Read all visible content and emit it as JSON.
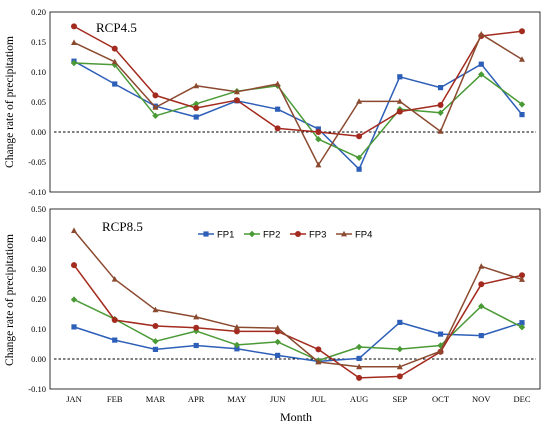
{
  "chart_data": [
    {
      "type": "line",
      "title": "RCP4.5",
      "xlabel": "",
      "ylabel": "Change rate of precipitatiom",
      "categories": [
        "JAN",
        "FEB",
        "MAR",
        "APR",
        "MAY",
        "JUN",
        "JUL",
        "AUG",
        "SEP",
        "OCT",
        "NOV",
        "DEC"
      ],
      "ylim": [
        -0.1,
        0.2
      ],
      "yticks": [
        "-0.10",
        "-0.05",
        "0.00",
        "0.05",
        "0.10",
        "0.15",
        "0.20"
      ],
      "reference_line": 0,
      "series": [
        {
          "name": "FP1",
          "color": "#2e5fb8",
          "marker": "square",
          "values": [
            0.118,
            0.08,
            0.043,
            0.025,
            0.052,
            0.038,
            0.005,
            -0.062,
            0.092,
            0.074,
            0.113,
            0.029
          ]
        },
        {
          "name": "FP2",
          "color": "#4a9a36",
          "marker": "diamond",
          "values": [
            0.115,
            0.112,
            0.027,
            0.047,
            0.068,
            0.077,
            -0.012,
            -0.043,
            0.038,
            0.032,
            0.096,
            0.046
          ]
        },
        {
          "name": "FP3",
          "color": "#a32a1e",
          "marker": "circle",
          "values": [
            0.176,
            0.139,
            0.061,
            0.04,
            0.053,
            0.006,
            0.0,
            -0.007,
            0.034,
            0.045,
            0.16,
            0.168
          ]
        },
        {
          "name": "FP4",
          "color": "#8b4a30",
          "marker": "triangle",
          "values": [
            0.149,
            0.117,
            0.041,
            0.077,
            0.067,
            0.08,
            -0.055,
            0.051,
            0.051,
            0.001,
            0.163,
            0.121
          ]
        }
      ]
    },
    {
      "type": "line",
      "title": "RCP8.5",
      "xlabel": "Month",
      "ylabel": "Change rate of precipitatiom",
      "categories": [
        "JAN",
        "FEB",
        "MAR",
        "APR",
        "MAY",
        "JUN",
        "JUL",
        "AUG",
        "SEP",
        "OCT",
        "NOV",
        "DEC"
      ],
      "ylim": [
        -0.1,
        0.5
      ],
      "yticks": [
        "-0.10",
        "0.00",
        "0.10",
        "0.20",
        "0.30",
        "0.40",
        "0.50"
      ],
      "reference_line": 0,
      "legend": "top-center",
      "series": [
        {
          "name": "FP1",
          "color": "#2e5fb8",
          "marker": "square",
          "values": [
            0.107,
            0.063,
            0.032,
            0.045,
            0.034,
            0.012,
            -0.008,
            0.002,
            0.122,
            0.083,
            0.078,
            0.121
          ]
        },
        {
          "name": "FP2",
          "color": "#4a9a36",
          "marker": "diamond",
          "values": [
            0.198,
            0.133,
            0.059,
            0.093,
            0.047,
            0.057,
            -0.005,
            0.04,
            0.033,
            0.045,
            0.176,
            0.106
          ]
        },
        {
          "name": "FP3",
          "color": "#a32a1e",
          "marker": "circle",
          "values": [
            0.313,
            0.13,
            0.11,
            0.104,
            0.092,
            0.092,
            0.032,
            -0.063,
            -0.058,
            0.024,
            0.249,
            0.279
          ]
        },
        {
          "name": "FP4",
          "color": "#8b4a30",
          "marker": "triangle",
          "values": [
            0.428,
            0.266,
            0.164,
            0.14,
            0.106,
            0.103,
            -0.01,
            -0.026,
            -0.026,
            0.026,
            0.309,
            0.265
          ]
        }
      ]
    }
  ]
}
